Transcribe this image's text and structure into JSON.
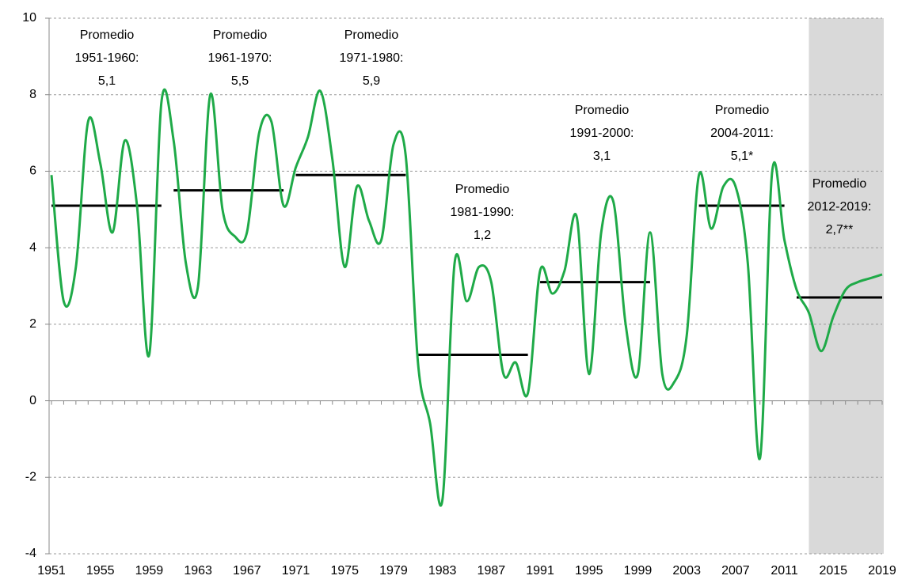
{
  "chart_data": {
    "type": "line",
    "x": [
      1951,
      1952,
      1953,
      1954,
      1955,
      1956,
      1957,
      1958,
      1959,
      1960,
      1961,
      1962,
      1963,
      1964,
      1965,
      1966,
      1967,
      1968,
      1969,
      1970,
      1971,
      1972,
      1973,
      1974,
      1975,
      1976,
      1977,
      1978,
      1979,
      1980,
      1981,
      1982,
      1983,
      1984,
      1985,
      1986,
      1987,
      1988,
      1989,
      1990,
      1991,
      1992,
      1993,
      1994,
      1995,
      1996,
      1997,
      1998,
      1999,
      2000,
      2001,
      2002,
      2003,
      2004,
      2005,
      2006,
      2007,
      2008,
      2009,
      2010,
      2011,
      2012,
      2013,
      2014,
      2015,
      2016,
      2017,
      2018,
      2019
    ],
    "series": [
      {
        "color": "#1faa48",
        "values": [
          5.9,
          2.6,
          3.5,
          7.3,
          6.2,
          4.4,
          6.8,
          5.1,
          1.2,
          7.8,
          6.8,
          3.6,
          3.0,
          8.0,
          5.0,
          4.3,
          4.4,
          7.0,
          7.3,
          5.1,
          6.1,
          6.9,
          8.1,
          6.3,
          3.5,
          5.6,
          4.7,
          4.2,
          6.7,
          6.4,
          1.0,
          -0.6,
          -2.6,
          3.6,
          2.6,
          3.5,
          3.1,
          0.7,
          1.0,
          0.2,
          3.4,
          2.8,
          3.4,
          4.8,
          0.7,
          4.4,
          5.2,
          2.0,
          0.7,
          4.4,
          0.7,
          0.5,
          1.7,
          5.9,
          4.5,
          5.6,
          5.6,
          3.6,
          -1.5,
          6.0,
          4.2,
          2.9,
          2.3,
          1.3,
          2.2,
          2.9,
          3.1,
          3.2,
          3.3
        ]
      }
    ],
    "averages": [
      {
        "start": 1951,
        "end": 1960,
        "value": 5.1,
        "lines": [
          "Promedio",
          "1951-1960:",
          "5,1"
        ]
      },
      {
        "start": 1961,
        "end": 1970,
        "value": 5.5,
        "lines": [
          "Promedio",
          "1961-1970:",
          "5,5"
        ]
      },
      {
        "start": 1971,
        "end": 1980,
        "value": 5.9,
        "lines": [
          "Promedio",
          "1971-1980:",
          "5,9"
        ]
      },
      {
        "start": 1981,
        "end": 1990,
        "value": 1.2,
        "lines": [
          "Promedio",
          "1981-1990:",
          "1,2"
        ]
      },
      {
        "start": 1991,
        "end": 2000,
        "value": 3.1,
        "lines": [
          "Promedio",
          "1991-2000:",
          "3,1"
        ]
      },
      {
        "start": 2004,
        "end": 2011,
        "value": 5.1,
        "lines": [
          "Promedio",
          "2004-2011:",
          "5,1*"
        ]
      },
      {
        "start": 2012,
        "end": 2019,
        "value": 2.7,
        "lines": [
          "Promedio",
          "2012-2019:",
          "2,7**"
        ]
      }
    ],
    "average_color": "#000000",
    "shaded_x": [
      2013,
      2019
    ],
    "shade_color": "#d9d9d9",
    "xlim": [
      1951,
      2019
    ],
    "xticks": [
      1951,
      1955,
      1959,
      1963,
      1967,
      1971,
      1975,
      1979,
      1983,
      1987,
      1991,
      1995,
      1999,
      2003,
      2007,
      2011,
      2015,
      2019
    ],
    "ylim": [
      -4,
      10
    ],
    "yticks": [
      -4,
      -2,
      0,
      2,
      4,
      6,
      8,
      10
    ],
    "grid": true
  }
}
